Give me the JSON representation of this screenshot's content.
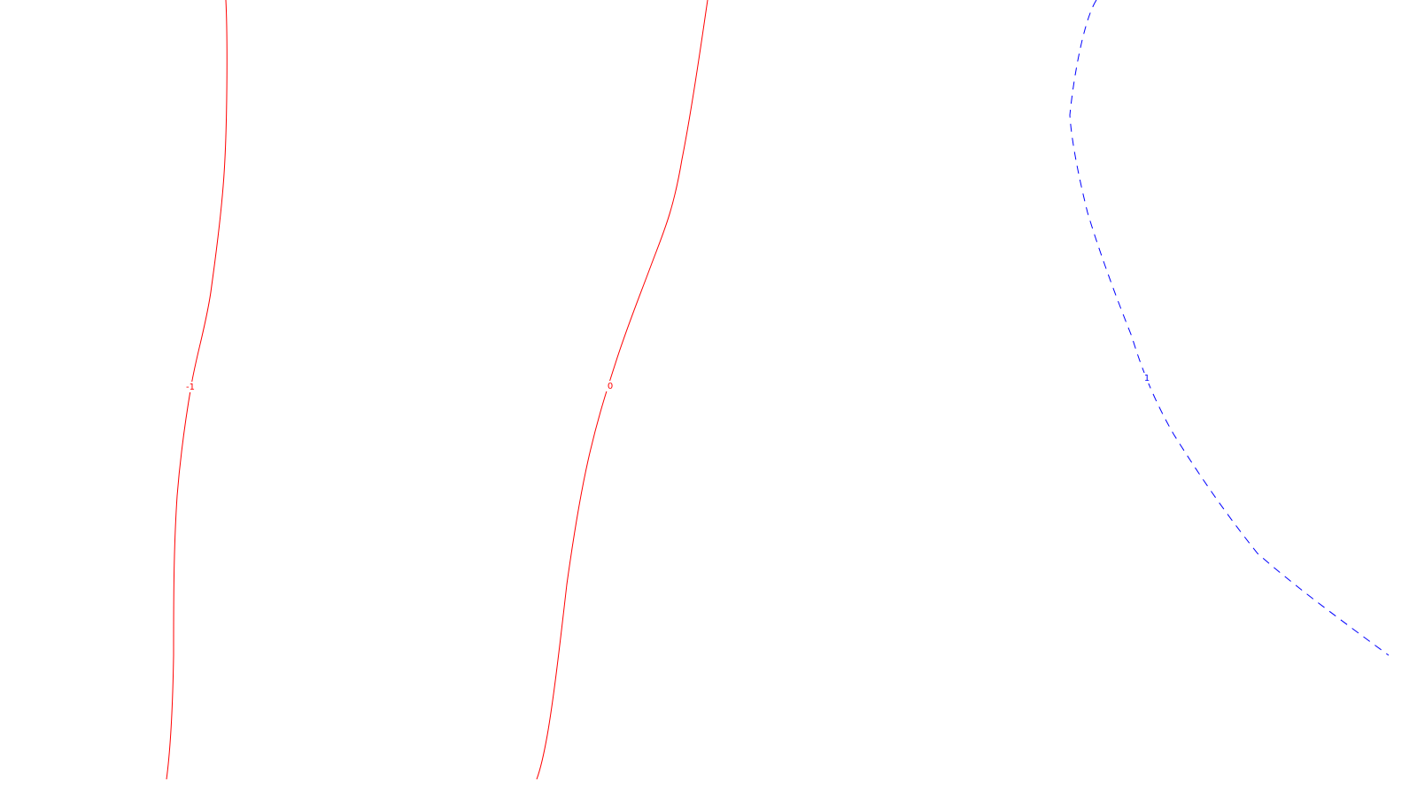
{
  "colors": {
    "background": "#ffffff",
    "positive_level": "#ff0000",
    "negative_level": "#0000ff"
  },
  "chart_data": {
    "type": "contour",
    "title": "",
    "xlabel": "",
    "ylabel": "",
    "grid": false,
    "legend": "none",
    "levels": [
      {
        "label": "-1",
        "value": -1,
        "color": "#ff0000",
        "style": "solid"
      },
      {
        "label": "0",
        "value": 0,
        "color": "#ff0000",
        "style": "solid"
      },
      {
        "label": "1",
        "value": 1,
        "color": "#0000ff",
        "style": "dashed"
      }
    ]
  }
}
